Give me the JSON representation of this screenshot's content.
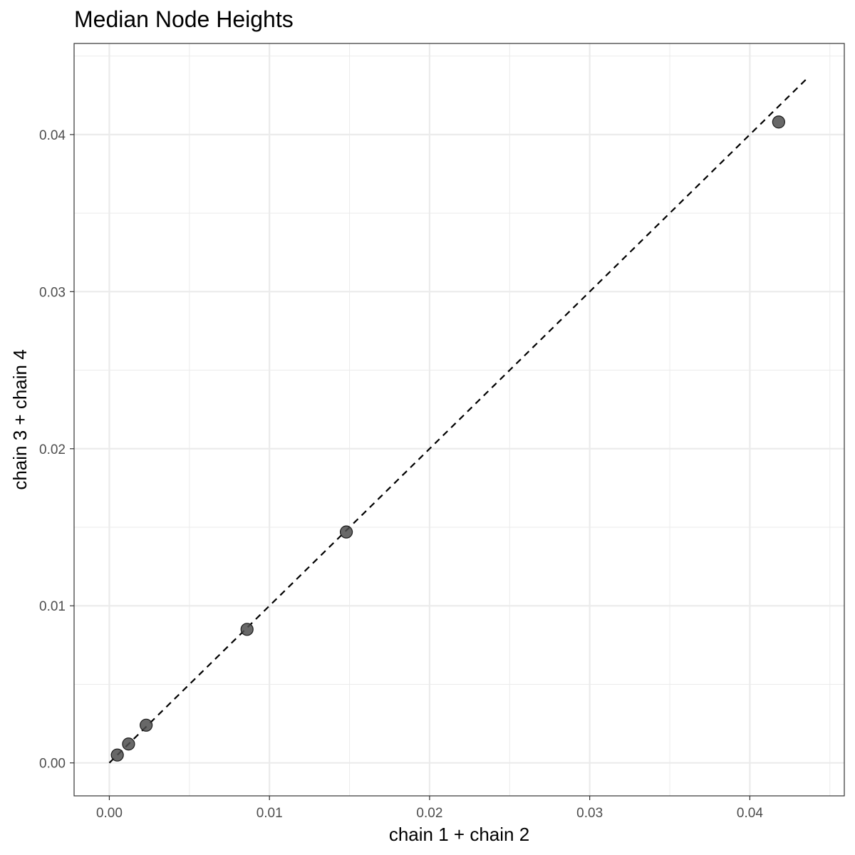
{
  "chart_data": {
    "type": "scatter",
    "title": "Median Node Heights",
    "xlabel": "chain 1 + chain 2",
    "ylabel": "chain 3 + chain 4",
    "xlim": [
      -0.0022,
      0.0459
    ],
    "ylim": [
      -0.0021,
      0.0458
    ],
    "x_ticks": [
      0.0,
      0.01,
      0.02,
      0.03,
      0.04
    ],
    "x_tick_labels": [
      "0.00",
      "0.01",
      "0.02",
      "0.03",
      "0.04"
    ],
    "y_ticks": [
      0.0,
      0.01,
      0.02,
      0.03,
      0.04
    ],
    "y_tick_labels": [
      "0.00",
      "0.01",
      "0.02",
      "0.03",
      "0.04"
    ],
    "grid": true,
    "points": [
      {
        "x": 0.0005,
        "y": 0.0005
      },
      {
        "x": 0.0012,
        "y": 0.0012
      },
      {
        "x": 0.0023,
        "y": 0.0024
      },
      {
        "x": 0.0086,
        "y": 0.0085
      },
      {
        "x": 0.0148,
        "y": 0.0147
      },
      {
        "x": 0.0418,
        "y": 0.0408
      }
    ],
    "reference_line": {
      "style": "dashed",
      "from": [
        0.0,
        0.0
      ],
      "to": [
        0.0436,
        0.0436
      ]
    },
    "colors": {
      "point_fill": "#4d4d4d",
      "point_stroke": "#1a1a1a",
      "grid": "#ebebeb",
      "panel_border": "#333333",
      "line": "#000000"
    }
  }
}
